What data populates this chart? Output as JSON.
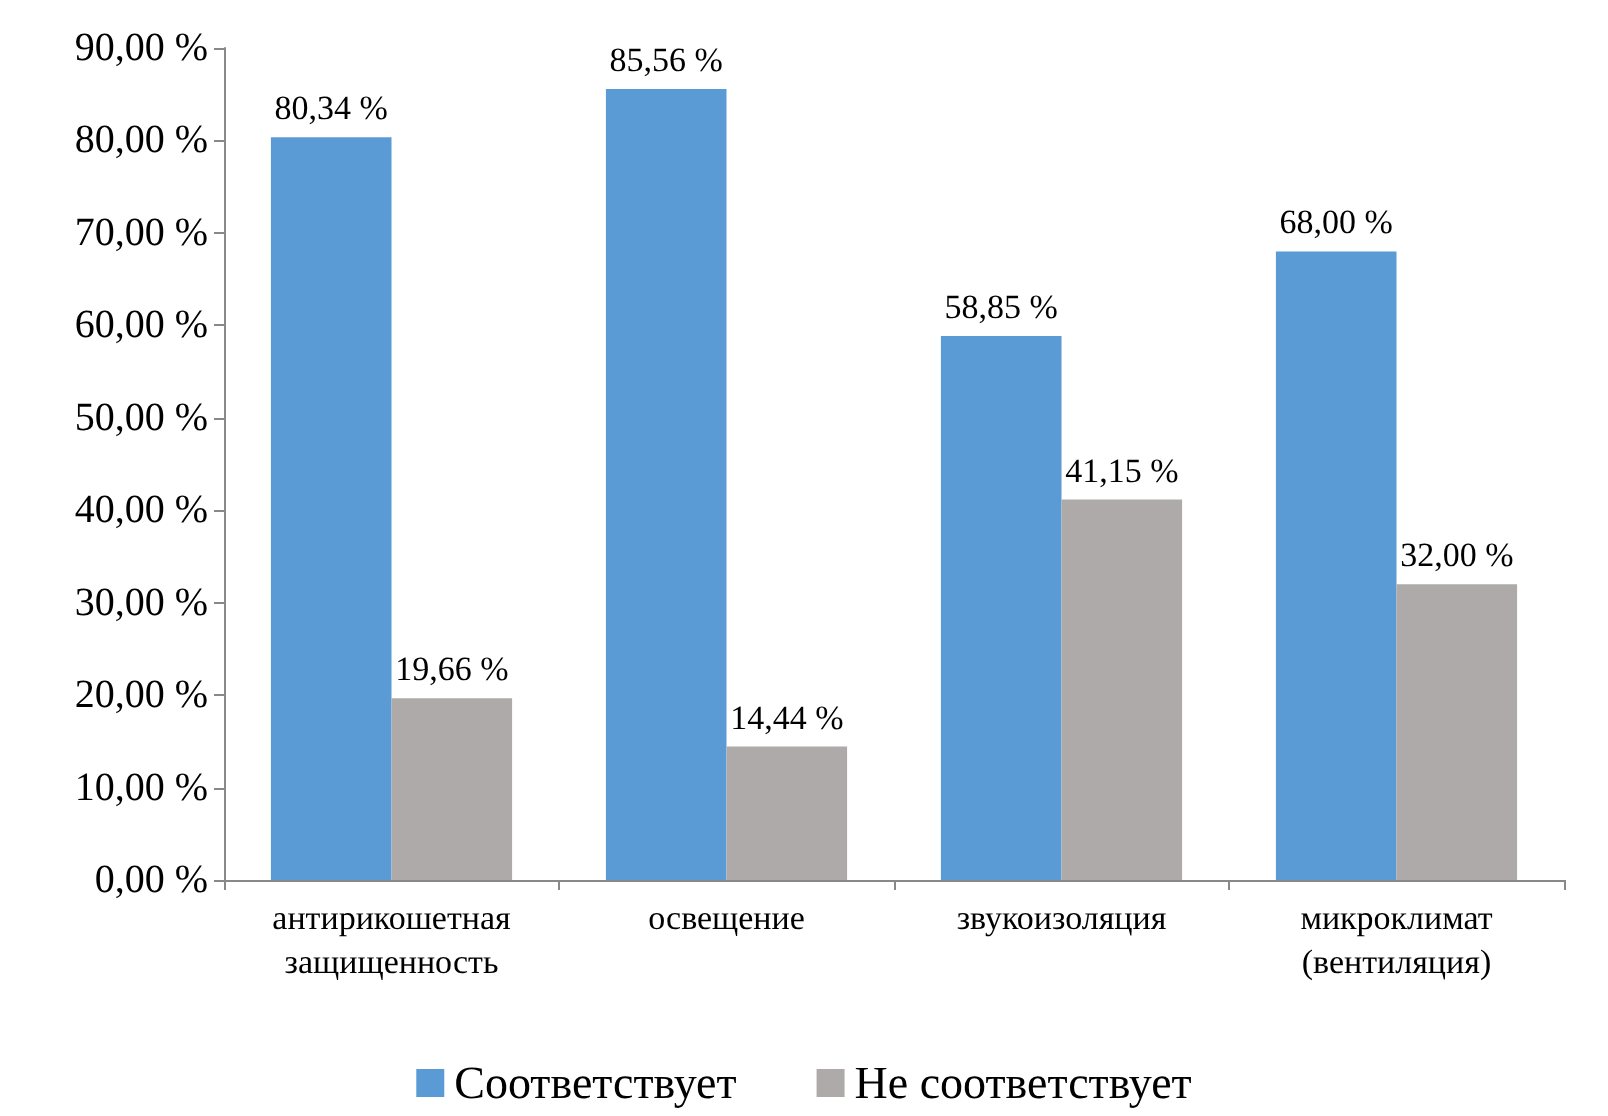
{
  "chart_data": {
    "type": "bar",
    "categories": [
      "антирикошетная защищенность",
      "освещение",
      "звукоизоляция",
      "микроклимат (вентиляция)"
    ],
    "series": [
      {
        "name": "Соответствует",
        "color": "#5b9bd5",
        "values": [
          80.34,
          85.56,
          58.85,
          68.0
        ],
        "value_labels": [
          "80,34 %",
          "85,56 %",
          "58,85 %",
          "68,00 %"
        ]
      },
      {
        "name": "Не соответствует",
        "color": "#aeaaaa",
        "values": [
          19.66,
          14.44,
          41.15,
          32.0
        ],
        "value_labels": [
          "19,66 %",
          "14,44 %",
          "41,15 %",
          "32,00 %"
        ]
      }
    ],
    "ylim": [
      0,
      90
    ],
    "yticks": [
      {
        "value": 0,
        "label": "0,00 %"
      },
      {
        "value": 10,
        "label": "10,00 %"
      },
      {
        "value": 20,
        "label": "20,00 %"
      },
      {
        "value": 30,
        "label": "30,00 %"
      },
      {
        "value": 40,
        "label": "40,00 %"
      },
      {
        "value": 50,
        "label": "50,00 %"
      },
      {
        "value": 60,
        "label": "60,00 %"
      },
      {
        "value": 70,
        "label": "70,00 %"
      },
      {
        "value": 80,
        "label": "80,00 %"
      },
      {
        "value": 90,
        "label": "90,00 %"
      }
    ],
    "grid": false,
    "legend": "bottom"
  }
}
